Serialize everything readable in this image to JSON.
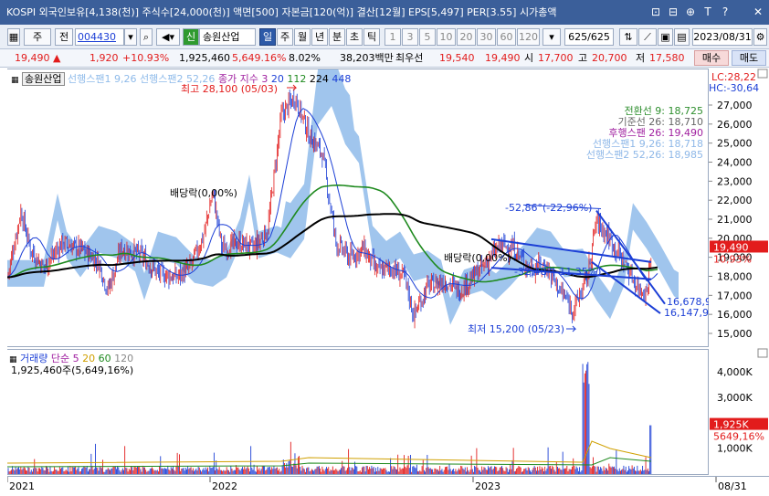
{
  "titlebar": {
    "text": "KOSPI 외국인보유[4,138(천)] 주식수[24,000(천)] 액면[500] 자본금[120(억)] 결산[12월] EPS[5,497] PER[3.55] 시가총액",
    "icons": [
      "window-icon",
      "restore-icon",
      "pin-icon",
      "font-icon",
      "help-icon",
      "close-icon"
    ],
    "icon_glyphs": [
      "⊡",
      "⊟",
      "⊕",
      "T",
      "?",
      "✕"
    ]
  },
  "toolbar": {
    "stock_type": "주",
    "prev_label": "전",
    "code": "004430",
    "market_badge": "신",
    "stock_name": "송원산업",
    "periods": [
      "일",
      "주",
      "월",
      "년",
      "분",
      "초",
      "틱"
    ],
    "intervals": [
      "1",
      "3",
      "5",
      "10",
      "20",
      "30",
      "60",
      "120"
    ],
    "count": "625/625",
    "date": "2023/08/31"
  },
  "quote": {
    "price": "19,490",
    "change": "1,920",
    "change_pct": "+10.93%",
    "volume": "1,925,460",
    "volume_pct": "5,649.16%",
    "turnover_pct": "8.02%",
    "amount": "38,203백만",
    "priority_label": "최우선",
    "ask": "19,540",
    "bid": "19,490",
    "open_label": "시",
    "open": "17,700",
    "high_label": "고",
    "high": "20,700",
    "low_label": "저",
    "low": "17,580",
    "buy_label": "매수",
    "sell_label": "매도"
  },
  "legend": {
    "name": "송원산업",
    "span1": "선행스팬1 9,26",
    "span2": "선행스팬2 52,26",
    "close_label": "종가 지수 3",
    "ma1": "20",
    "ma2": "112",
    "ma3": "224",
    "ma4": "448",
    "lc": "LC:28,22",
    "hc": "HC:-30,64"
  },
  "ichimoku_legend": [
    {
      "text": "전환선 9: 18,725",
      "color": "#2f8f2f"
    },
    {
      "text": "기준선 26: 18,710",
      "color": "#666666"
    },
    {
      "text": "후행스팬 26: 19,490",
      "color": "#a020a0"
    },
    {
      "text": "선행스팬1 9,26: 18,718",
      "color": "#8fb8e8"
    },
    {
      "text": "선행스팬2 52,26: 18,985",
      "color": "#8fb8e8"
    }
  ],
  "annotations": {
    "high": "최고 28,100 (05/03)",
    "low": "최저 15,200 (05/23)",
    "dividend1": "배당락(0,00%)",
    "dividend2": "배당락(0,00%)",
    "channel_top": "-52,86°(-22,96%)",
    "channel_mid": "-32,48°(-11,35%)",
    "trend1": "16,678,9",
    "trend2": "16,147,9"
  },
  "price_axis": {
    "ticks": [
      "27,000",
      "26,000",
      "25,000",
      "24,000",
      "23,000",
      "22,000",
      "21,000",
      "20,000",
      "19,000",
      "18,000",
      "17,000",
      "16,000",
      "15,000"
    ],
    "current": "19,490",
    "current_pct": "10,93%"
  },
  "volume_legend": {
    "label": "거래량",
    "ma_label": "단순",
    "ma1": "5",
    "ma2": "20",
    "ma3": "60",
    "ma4": "120",
    "value": "1,925,460주(5,649,16%)"
  },
  "volume_axis": {
    "ticks": [
      "4,000K",
      "3,000K",
      "2,000K",
      "1,000K"
    ],
    "current": "1,925K",
    "current_pct": "5649,16%"
  },
  "x_axis": [
    "2021",
    "2022",
    "2023",
    "08/31"
  ],
  "colors": {
    "up": "#e21c1c",
    "down": "#1c3fd6",
    "cloud": "#8fbbea",
    "ma_green": "#1f8a1f",
    "ma_black": "#000000",
    "accent": "#2d5aa8"
  }
}
